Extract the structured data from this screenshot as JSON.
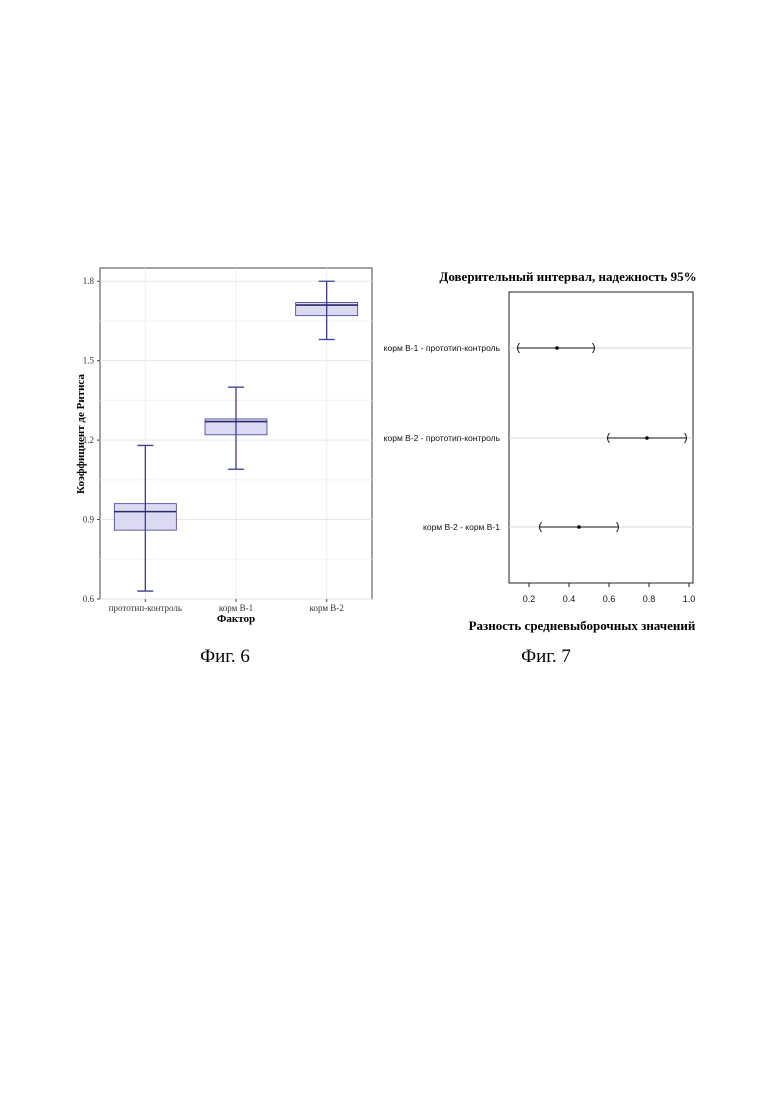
{
  "figures": [
    {
      "caption": "Фиг. 6"
    },
    {
      "caption": "Фиг. 7"
    }
  ],
  "chart_data": [
    {
      "type": "boxplot",
      "title": "",
      "xlabel": "Фактор",
      "ylabel": "Коэффициент де Ритиса",
      "ylim": [
        0.6,
        1.85
      ],
      "yticks": [
        "0.6",
        "0.9",
        "1.2",
        "1.5",
        "1.8"
      ],
      "grid": true,
      "color": "#3c3c99",
      "fill": "#d8d6f2",
      "categories": [
        "прототип-контроль",
        "корм В-1",
        "корм В-2"
      ],
      "boxes": [
        {
          "whisker_low": 0.63,
          "q1": 0.86,
          "median": 0.93,
          "q3": 0.96,
          "whisker_high": 1.18
        },
        {
          "whisker_low": 1.09,
          "q1": 1.22,
          "median": 1.27,
          "q3": 1.28,
          "whisker_high": 1.4
        },
        {
          "whisker_low": 1.58,
          "q1": 1.67,
          "median": 1.71,
          "q3": 1.72,
          "whisker_high": 1.8
        }
      ]
    },
    {
      "type": "interval",
      "title": "Доверительный интервал, надежность 95%",
      "xlabel": "Разность средневыборочных значений",
      "ylabel": "",
      "xlim": [
        0.1,
        1.02
      ],
      "xticks": [
        "0.2",
        "0.4",
        "0.6",
        "0.8",
        "1.0"
      ],
      "grid": true,
      "categories": [
        "корм В-1 - прототип-контроль",
        "корм В-2 - прототип-контроль",
        "корм В-2 - корм В-1"
      ],
      "estimates": [
        {
          "low": 0.14,
          "mean": 0.34,
          "high": 0.53
        },
        {
          "low": 0.59,
          "mean": 0.79,
          "high": 0.99
        },
        {
          "low": 0.25,
          "mean": 0.45,
          "high": 0.65
        }
      ]
    }
  ]
}
